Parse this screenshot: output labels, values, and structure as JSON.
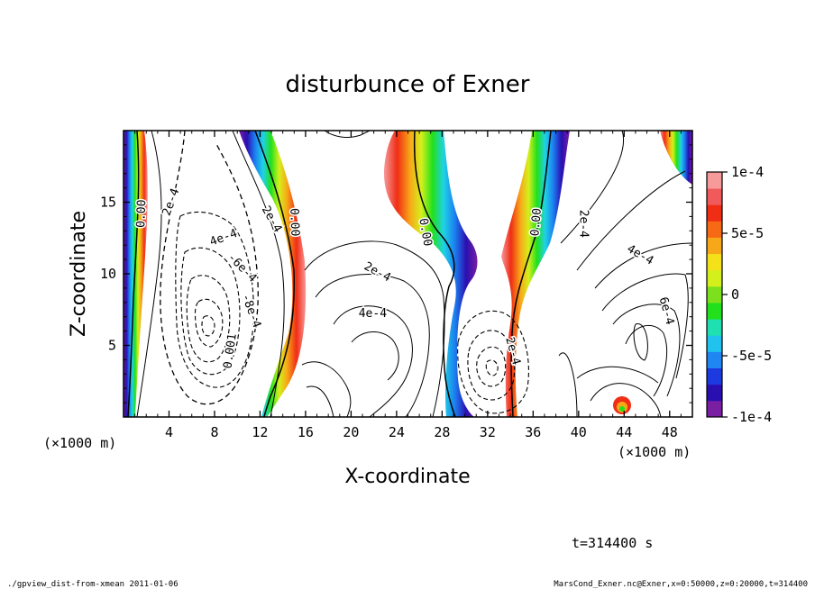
{
  "chart_data": {
    "type": "contour",
    "title": "disturbunce of Exner",
    "xlabel": "X-coordinate",
    "ylabel": "Z-coordinate",
    "x_unit": "(×1000 m)",
    "y_unit": "(×1000 m)",
    "xlim": [
      0,
      50
    ],
    "ylim": [
      0,
      20
    ],
    "x_ticks": [
      4,
      8,
      12,
      16,
      20,
      24,
      28,
      32,
      36,
      40,
      44,
      48
    ],
    "y_ticks": [
      5,
      10,
      15
    ],
    "colorbar": {
      "range": [
        -0.0001,
        0.0001
      ],
      "labels": [
        "1e-4",
        "5e-5",
        "0",
        "-5e-5",
        "-1e-4"
      ],
      "label_values": [
        0.0001,
        5e-05,
        0,
        -5e-05,
        -0.0001
      ],
      "colors": [
        "#7a1fa2",
        "#2a0fb0",
        "#1c3ae0",
        "#1f86f2",
        "#1fc3ee",
        "#1fe0b0",
        "#22e01c",
        "#7ce01c",
        "#d4f01c",
        "#f5e11a",
        "#f7a818",
        "#f76a15",
        "#f02d15",
        "#f05a5a",
        "#f69a9a"
      ]
    },
    "contour_labels": [
      {
        "text": "0.00",
        "x": 1.6,
        "z": 14.2,
        "angle": -88
      },
      {
        "text": "2e-4",
        "x": 4.2,
        "z": 15.0,
        "angle": -70
      },
      {
        "text": "4e-4",
        "x": 8.8,
        "z": 12.5,
        "angle": -20
      },
      {
        "text": "-6e-4",
        "x": 10.4,
        "z": 10.4,
        "angle": 45
      },
      {
        "text": "-8e-4",
        "x": 11.2,
        "z": 7.4,
        "angle": 70
      },
      {
        "text": "0.001",
        "x": 9.4,
        "z": 4.6,
        "angle": -82
      },
      {
        "text": "2e-4",
        "x": 13.0,
        "z": 13.8,
        "angle": 60
      },
      {
        "text": "0.00",
        "x": 15.0,
        "z": 13.6,
        "angle": 88
      },
      {
        "text": "2e-4",
        "x": 22.3,
        "z": 10.1,
        "angle": 28
      },
      {
        "text": "4e-4",
        "x": 21.9,
        "z": 7.2,
        "angle": 0
      },
      {
        "text": "0.00",
        "x": 26.5,
        "z": 12.9,
        "angle": 80
      },
      {
        "text": "2e-4",
        "x": 34.2,
        "z": 4.6,
        "angle": 75
      },
      {
        "text": "0.00",
        "x": 36.3,
        "z": 13.6,
        "angle": -85
      },
      {
        "text": "2e-4",
        "x": 40.4,
        "z": 13.5,
        "angle": 90
      },
      {
        "text": "4e-4",
        "x": 45.4,
        "z": 11.3,
        "angle": 30
      },
      {
        "text": "6e-4",
        "x": 47.7,
        "z": 7.4,
        "angle": 75
      }
    ],
    "time_label": "t=314400 s",
    "footer_left": "./gpview_dist-from-xmean  2011-01-06",
    "footer_right": "MarsCond_Exner.nc@Exner,x=0:50000,z=0:20000,t=314400"
  }
}
